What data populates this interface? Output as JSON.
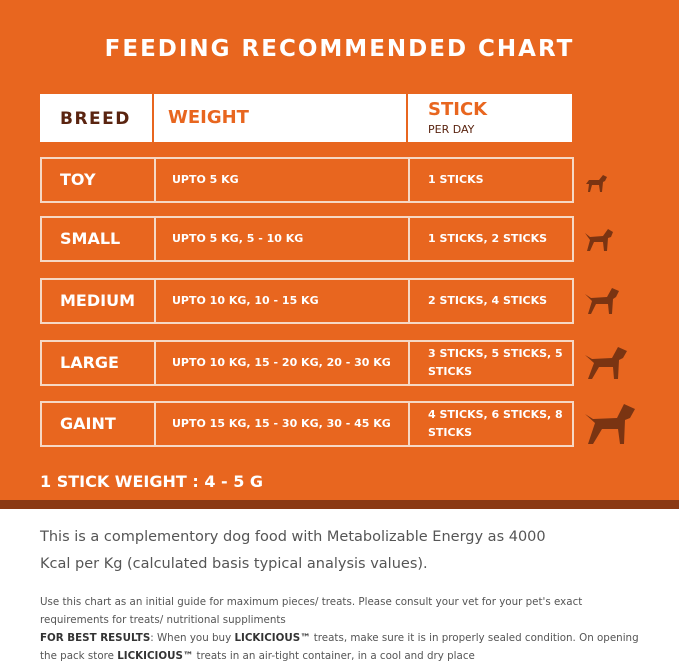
{
  "title": "FEEDING RECOMMENDED CHART",
  "table": {
    "header": {
      "breed": "BREED",
      "weight": "WEIGHT",
      "stick": "STICK",
      "stick_sub": "PER DAY"
    },
    "rows": [
      [
        "TOY",
        "UPTO 5 KG",
        "1 STICKS"
      ],
      [
        "SMALL",
        "UPTO 5 KG, 5 - 10 KG",
        "1 STICKS, 2 STICKS"
      ],
      [
        "MEDIUM",
        "UPTO 10 KG, 10 - 15 KG",
        "2 STICKS, 4 STICKS"
      ],
      [
        "LARGE",
        "UPTO 10 KG, 15 - 20 KG, 20 - 30 KG",
        "3 STICKS, 5 STICKS, 5 STICKS"
      ],
      [
        "GAINT",
        "UPTO 15 KG, 15 - 30 KG, 30 - 45 KG",
        "4 STICKS, 6 STICKS, 8 STICKS"
      ]
    ]
  },
  "stick_weight": "1 STICK WEIGHT : 4 - 5 G",
  "description": "This is a complementory dog food with Metabolizable Energy as 4000 Kcal per Kg (calculated basis typical analysis values).",
  "notes": [
    [
      {
        "text": "Use this chart as an initial guide for maximum pieces/ treats. Please consult your vet for your pet's exact requirements for treats/ nutritional suppliments",
        "bold": false
      }
    ],
    [
      {
        "text": "FOR BEST RESULTS",
        "bold": true
      },
      {
        "text": ": When you buy ",
        "bold": false
      },
      {
        "text": "LICKICIOUS™",
        "bold": true
      },
      {
        "text": " treats, make sure it is in properly sealed condition. On opening the pack store ",
        "bold": false
      },
      {
        "text": "LICKICIOUS™",
        "bold": true
      },
      {
        "text": " treats in an air-tight container, in a cool and dry place",
        "bold": false
      }
    ]
  ]
}
